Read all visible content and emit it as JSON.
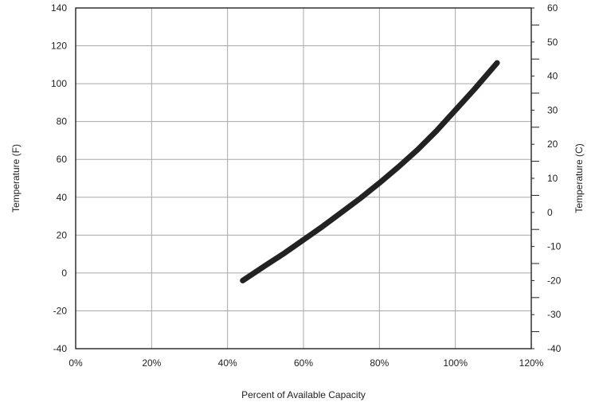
{
  "chart_data": {
    "type": "line",
    "xlabel": "Percent of Available Capacity",
    "ylabel": "Temperature (F)",
    "y2label": "Temperature (C)",
    "xlim": [
      0,
      120
    ],
    "ylim": [
      -40,
      140
    ],
    "y2lim": [
      -40,
      60
    ],
    "x_ticks": [
      0,
      20,
      40,
      60,
      80,
      100,
      120
    ],
    "x_tick_labels": [
      "0%",
      "20%",
      "40%",
      "60%",
      "80%",
      "100%",
      "120%"
    ],
    "y_ticks": [
      -40,
      -20,
      0,
      20,
      40,
      60,
      80,
      100,
      120,
      140
    ],
    "y_tick_labels": [
      "-40",
      "-20",
      "0",
      "20",
      "40",
      "60",
      "80",
      "100",
      "120",
      "140"
    ],
    "y2_ticks": [
      -40,
      -30,
      -20,
      -10,
      0,
      10,
      20,
      30,
      40,
      50,
      60
    ],
    "y2_tick_labels": [
      "-40",
      "-30",
      "-20",
      "-10",
      "0",
      "10",
      "20",
      "30",
      "40",
      "50",
      "60"
    ],
    "grid": true,
    "series": [
      {
        "color": "#222222",
        "x": [
          44,
          50,
          55,
          60,
          65,
          70,
          75,
          80,
          85,
          90,
          95,
          100,
          105,
          111
        ],
        "y": [
          -4,
          4,
          10.5,
          17.5,
          24.5,
          32,
          39.5,
          47.5,
          56,
          65,
          75,
          86,
          97,
          111
        ]
      }
    ]
  }
}
